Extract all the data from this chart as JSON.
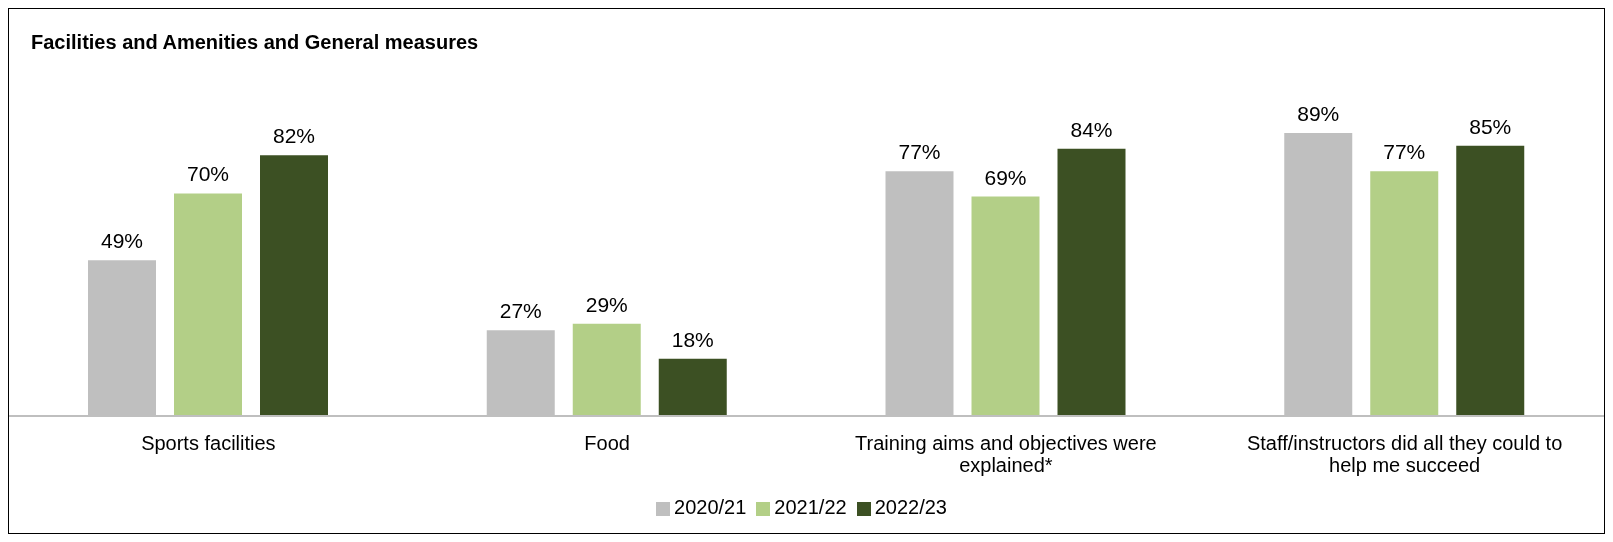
{
  "chart_data": {
    "type": "bar",
    "title": "Facilities and Amenities and General measures",
    "categories": [
      "Sports facilities",
      "Food",
      "Training aims and objectives were explained*",
      "Staff/instructors did all they could to help me succeed"
    ],
    "series": [
      {
        "name": "2020/21",
        "color": "#bfbfbf",
        "values": [
          49,
          27,
          77,
          89
        ],
        "value_labels": [
          "49%",
          "27%",
          "77%",
          "89%"
        ]
      },
      {
        "name": "2021/22",
        "color": "#b3cf87",
        "values": [
          70,
          29,
          69,
          77
        ],
        "value_labels": [
          "70%",
          "29%",
          "69%",
          "77%"
        ]
      },
      {
        "name": "2022/23",
        "color": "#3c5023",
        "values": [
          82,
          18,
          84,
          85
        ],
        "value_labels": [
          "82%",
          "18%",
          "84%",
          "85%"
        ]
      }
    ],
    "legend": "bottom",
    "grid": false
  }
}
